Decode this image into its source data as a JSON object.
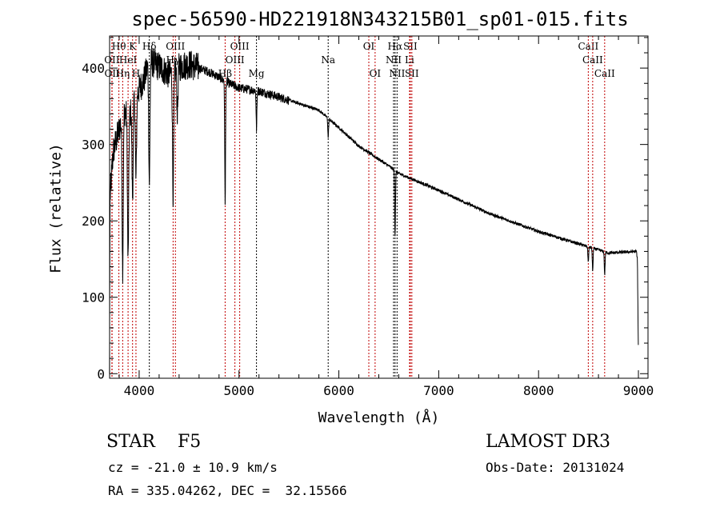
{
  "chart_data": {
    "type": "line",
    "title": "spec-56590-HD221918N343215B01_sp01-015.fits",
    "xlabel": "Wavelength (Å)",
    "ylabel": "Flux (relative)",
    "xlim": [
      3704,
      9096
    ],
    "ylim": [
      -6,
      442
    ],
    "xticks": [
      4000,
      5000,
      6000,
      7000,
      8000,
      9000
    ],
    "yticks": [
      0,
      100,
      200,
      300,
      400
    ],
    "grid": false,
    "continuum": [
      [
        3703,
        0
      ],
      [
        3708,
        230
      ],
      [
        3740,
        290
      ],
      [
        3800,
        320
      ],
      [
        3850,
        345
      ],
      [
        3900,
        335
      ],
      [
        3950,
        360
      ],
      [
        4000,
        372
      ],
      [
        4050,
        385
      ],
      [
        4100,
        410
      ],
      [
        4200,
        402
      ],
      [
        4300,
        392
      ],
      [
        4400,
        402
      ],
      [
        4500,
        405
      ],
      [
        4600,
        400
      ],
      [
        4700,
        395
      ],
      [
        4800,
        388
      ],
      [
        4900,
        380
      ],
      [
        5000,
        374
      ],
      [
        5200,
        370
      ],
      [
        5500,
        358
      ],
      [
        5800,
        345
      ],
      [
        6000,
        322
      ],
      [
        6200,
        298
      ],
      [
        6500,
        272
      ],
      [
        6600,
        262
      ],
      [
        7000,
        240
      ],
      [
        7500,
        210
      ],
      [
        8000,
        186
      ],
      [
        8500,
        166
      ],
      [
        8700,
        158
      ],
      [
        8980,
        160
      ],
      [
        8990,
        150
      ],
      [
        9000,
        25
      ]
    ],
    "absorption": [
      [
        3934,
        120
      ],
      [
        3968,
        110
      ],
      [
        3889,
        190
      ],
      [
        3835,
        200
      ],
      [
        4102,
        160
      ],
      [
        4340,
        160
      ],
      [
        4383,
        60
      ],
      [
        4861,
        160
      ],
      [
        5175,
        50
      ],
      [
        5893,
        25
      ],
      [
        6563,
        85
      ],
      [
        8498,
        20
      ],
      [
        8542,
        30
      ],
      [
        8662,
        30
      ]
    ],
    "lines": [
      {
        "name": "Hθ",
        "wl": 3797,
        "row": 1,
        "color": "#c00000"
      },
      {
        "name": "K",
        "wl": 3934,
        "row": 1,
        "color": "#c00000"
      },
      {
        "name": "Hδ",
        "wl": 4102,
        "row": 1,
        "color": "#000000"
      },
      {
        "name": "OIII",
        "wl": 4363,
        "row": 1,
        "color": "#c00000"
      },
      {
        "name": "OIII",
        "wl": 5007,
        "row": 1,
        "color": "#c00000"
      },
      {
        "name": "OI",
        "wl": 6300,
        "row": 1,
        "color": "#c00000"
      },
      {
        "name": "Hα",
        "wl": 6563,
        "row": 1,
        "color": "#000000"
      },
      {
        "name": "SII",
        "wl": 6716,
        "row": 1,
        "color": "#c00000"
      },
      {
        "name": "CaII",
        "wl": 8498,
        "row": 1,
        "color": "#c00000"
      },
      {
        "name": "OII",
        "wl": 3727,
        "row": 2,
        "color": "#c00000"
      },
      {
        "name": "HeI",
        "wl": 3889,
        "row": 2,
        "color": "#c00000"
      },
      {
        "name": "Hγ",
        "wl": 4340,
        "row": 2,
        "color": "#c00000"
      },
      {
        "name": "OIII",
        "wl": 4959,
        "row": 2,
        "color": "#c00000"
      },
      {
        "name": "Na",
        "wl": 5893,
        "row": 2,
        "color": "#000000"
      },
      {
        "name": "NII",
        "wl": 6548,
        "row": 2,
        "color": "#000000"
      },
      {
        "name": "Li",
        "wl": 6708,
        "row": 2,
        "color": "#c00000"
      },
      {
        "name": "CaII",
        "wl": 8542,
        "row": 2,
        "color": "#c00000"
      },
      {
        "name": "OII",
        "wl": 3729,
        "row": 3,
        "color": "#c00000"
      },
      {
        "name": "Hη",
        "wl": 3835,
        "row": 3,
        "color": "#c00000"
      },
      {
        "name": "H",
        "wl": 3968,
        "row": 3,
        "color": "#c00000"
      },
      {
        "name": "Hβ",
        "wl": 4861,
        "row": 3,
        "color": "#c00000"
      },
      {
        "name": "Mg",
        "wl": 5175,
        "row": 3,
        "color": "#000000"
      },
      {
        "name": "OI",
        "wl": 6363,
        "row": 3,
        "color": "#c00000"
      },
      {
        "name": "NII",
        "wl": 6583,
        "row": 3,
        "color": "#000000"
      },
      {
        "name": "SII",
        "wl": 6731,
        "row": 3,
        "color": "#c00000"
      },
      {
        "name": "CaII",
        "wl": 8662,
        "row": 3,
        "color": "#c00000"
      }
    ]
  },
  "info": {
    "class": "STAR    F5",
    "cz": "cz = -21.0 ± 10.9 km/s",
    "coords": "RA = 335.04262, DEC =  32.15566",
    "survey": "LAMOST DR3",
    "obsdate": "Obs-Date: 20131024"
  }
}
